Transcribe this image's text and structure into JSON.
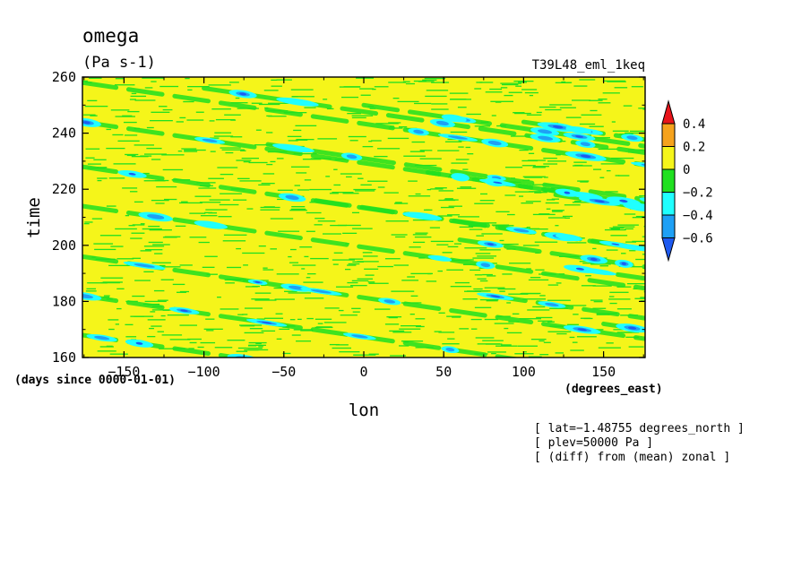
{
  "chart_data": {
    "type": "heatmap",
    "title": "omega",
    "units": "(Pa s-1)",
    "experiment": "T39L48_eml_1keq",
    "xlabel": "lon",
    "x_units": "(degrees_east)",
    "ylabel": "time",
    "y_units": "(days since 0000-01-01)",
    "xlim": [
      -176,
      176
    ],
    "ylim": [
      160,
      260
    ],
    "x_ticks": [
      -150,
      -100,
      -50,
      0,
      50,
      100,
      150
    ],
    "y_ticks": [
      160,
      180,
      200,
      220,
      240,
      260
    ],
    "x_tick_labels": [
      "−150",
      "−100",
      "−50",
      "0",
      "50",
      "100",
      "150"
    ],
    "y_tick_labels": [
      "160",
      "180",
      "200",
      "220",
      "240",
      "260"
    ],
    "colorbar": {
      "levels": [
        0.4,
        0.2,
        0,
        -0.2,
        -0.4,
        -0.6
      ],
      "labels": [
        "0.4",
        "0.2",
        "0",
        "−0.2",
        "−0.4",
        "−0.6"
      ],
      "colors": [
        "#e8141a",
        "#f5a21c",
        "#f5f51a",
        "#20e020",
        "#20ffff",
        "#1ea0f5",
        "#1e5af0"
      ]
    },
    "field_colors": {
      "positive": "#f5f51a",
      "weak_negative": "#20e020",
      "moderate_negative": "#20ffff",
      "strong_negative": "#1ea0f5",
      "very_strong_negative": "#1e5af0"
    },
    "westward_propagating_bands": [
      {
        "lon_start": -176,
        "time_start": 258,
        "slope_deg_per_day": -12
      },
      {
        "lon_start": -176,
        "time_start": 244,
        "slope_deg_per_day": -12
      },
      {
        "lon_start": -176,
        "time_start": 228,
        "slope_deg_per_day": -12
      },
      {
        "lon_start": -176,
        "time_start": 214,
        "slope_deg_per_day": -12
      },
      {
        "lon_start": -176,
        "time_start": 196,
        "slope_deg_per_day": -12
      },
      {
        "lon_start": -176,
        "time_start": 182,
        "slope_deg_per_day": -12
      },
      {
        "lon_start": -176,
        "time_start": 168,
        "slope_deg_per_day": -12
      },
      {
        "lon_start": -100,
        "time_start": 256,
        "slope_deg_per_day": -12
      },
      {
        "lon_start": -60,
        "time_start": 236,
        "slope_deg_per_day": -12
      },
      {
        "lon_start": -30,
        "time_start": 216,
        "slope_deg_per_day": -12
      },
      {
        "lon_start": 0,
        "time_start": 250,
        "slope_deg_per_day": -12
      },
      {
        "lon_start": 40,
        "time_start": 226,
        "slope_deg_per_day": -12
      },
      {
        "lon_start": 60,
        "time_start": 202,
        "slope_deg_per_day": -12
      },
      {
        "lon_start": 80,
        "time_start": 182,
        "slope_deg_per_day": -12
      },
      {
        "lon_start": 100,
        "time_start": 244,
        "slope_deg_per_day": -12
      },
      {
        "lon_start": 120,
        "time_start": 218,
        "slope_deg_per_day": -12
      },
      {
        "lon_start": 130,
        "time_start": 192,
        "slope_deg_per_day": -12
      },
      {
        "lon_start": 150,
        "time_start": 172,
        "slope_deg_per_day": -12
      }
    ],
    "info_lines": [
      "[ lat=−1.48755 degrees_north ]",
      "[ plev=50000 Pa ]",
      "[ (diff) from (mean) zonal ]"
    ],
    "grid": false,
    "legend": "right colorbar"
  }
}
